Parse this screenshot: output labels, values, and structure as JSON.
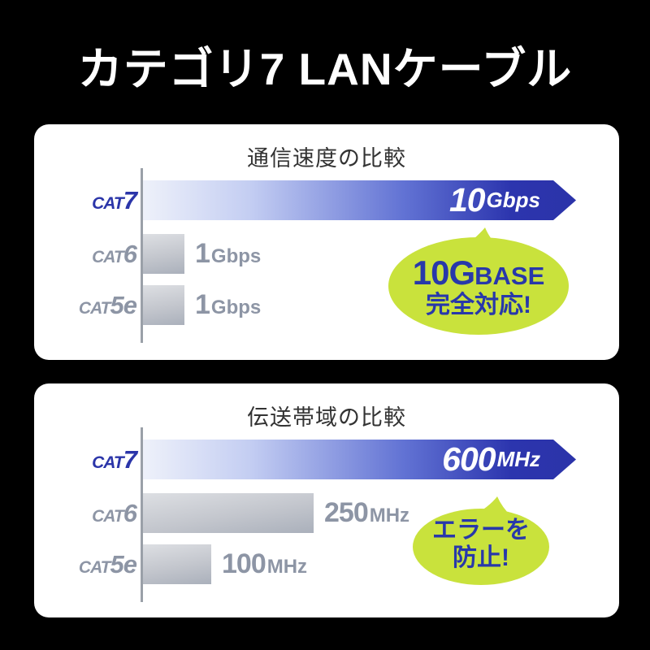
{
  "header": {
    "title": "カテゴリ7 LANケーブル"
  },
  "colors": {
    "background": "#000000",
    "panel": "#ffffff",
    "bar_blue_dark": "#2b33a9",
    "bar_blue_light": "#eef1fa",
    "bar_gray_light": "#dddfe3",
    "bar_gray_dark": "#aab0bb",
    "label_blue": "#2b35a9",
    "label_gray": "#8d95a5",
    "axis_gray": "#9aa0a8",
    "bubble_green": "#c9e23c",
    "bubble_text_blue": "#2838aa",
    "panel_title_text": "#333333"
  },
  "chart_data": [
    {
      "type": "bar",
      "orientation": "horizontal",
      "title": "通信速度の比較",
      "categories": [
        "CAT7",
        "CAT6",
        "CAT5e"
      ],
      "values": [
        10,
        1,
        1
      ],
      "unit": "Gbps",
      "value_labels": [
        "10Gbps",
        "1Gbps",
        "1Gbps"
      ],
      "xlim": [
        0,
        10
      ],
      "highlight_index": 0,
      "grid": false,
      "legend": false,
      "callout": {
        "lines": [
          [
            {
              "text": "10G",
              "size": "big"
            },
            {
              "text": "BASE",
              "size": "caps"
            }
          ],
          [
            {
              "text": "完全対応!",
              "size": "small"
            }
          ]
        ]
      }
    },
    {
      "type": "bar",
      "orientation": "horizontal",
      "title": "伝送帯域の比較",
      "categories": [
        "CAT7",
        "CAT6",
        "CAT5e"
      ],
      "values": [
        600,
        250,
        100
      ],
      "unit": "MHz",
      "value_labels": [
        "600MHz",
        "250MHz",
        "100MHz"
      ],
      "xlim": [
        0,
        600
      ],
      "highlight_index": 0,
      "grid": false,
      "legend": false,
      "callout": {
        "lines": [
          [
            {
              "text": "エラーを",
              "size": "small"
            }
          ],
          [
            {
              "text": "防止!",
              "size": "small"
            }
          ]
        ]
      }
    }
  ]
}
